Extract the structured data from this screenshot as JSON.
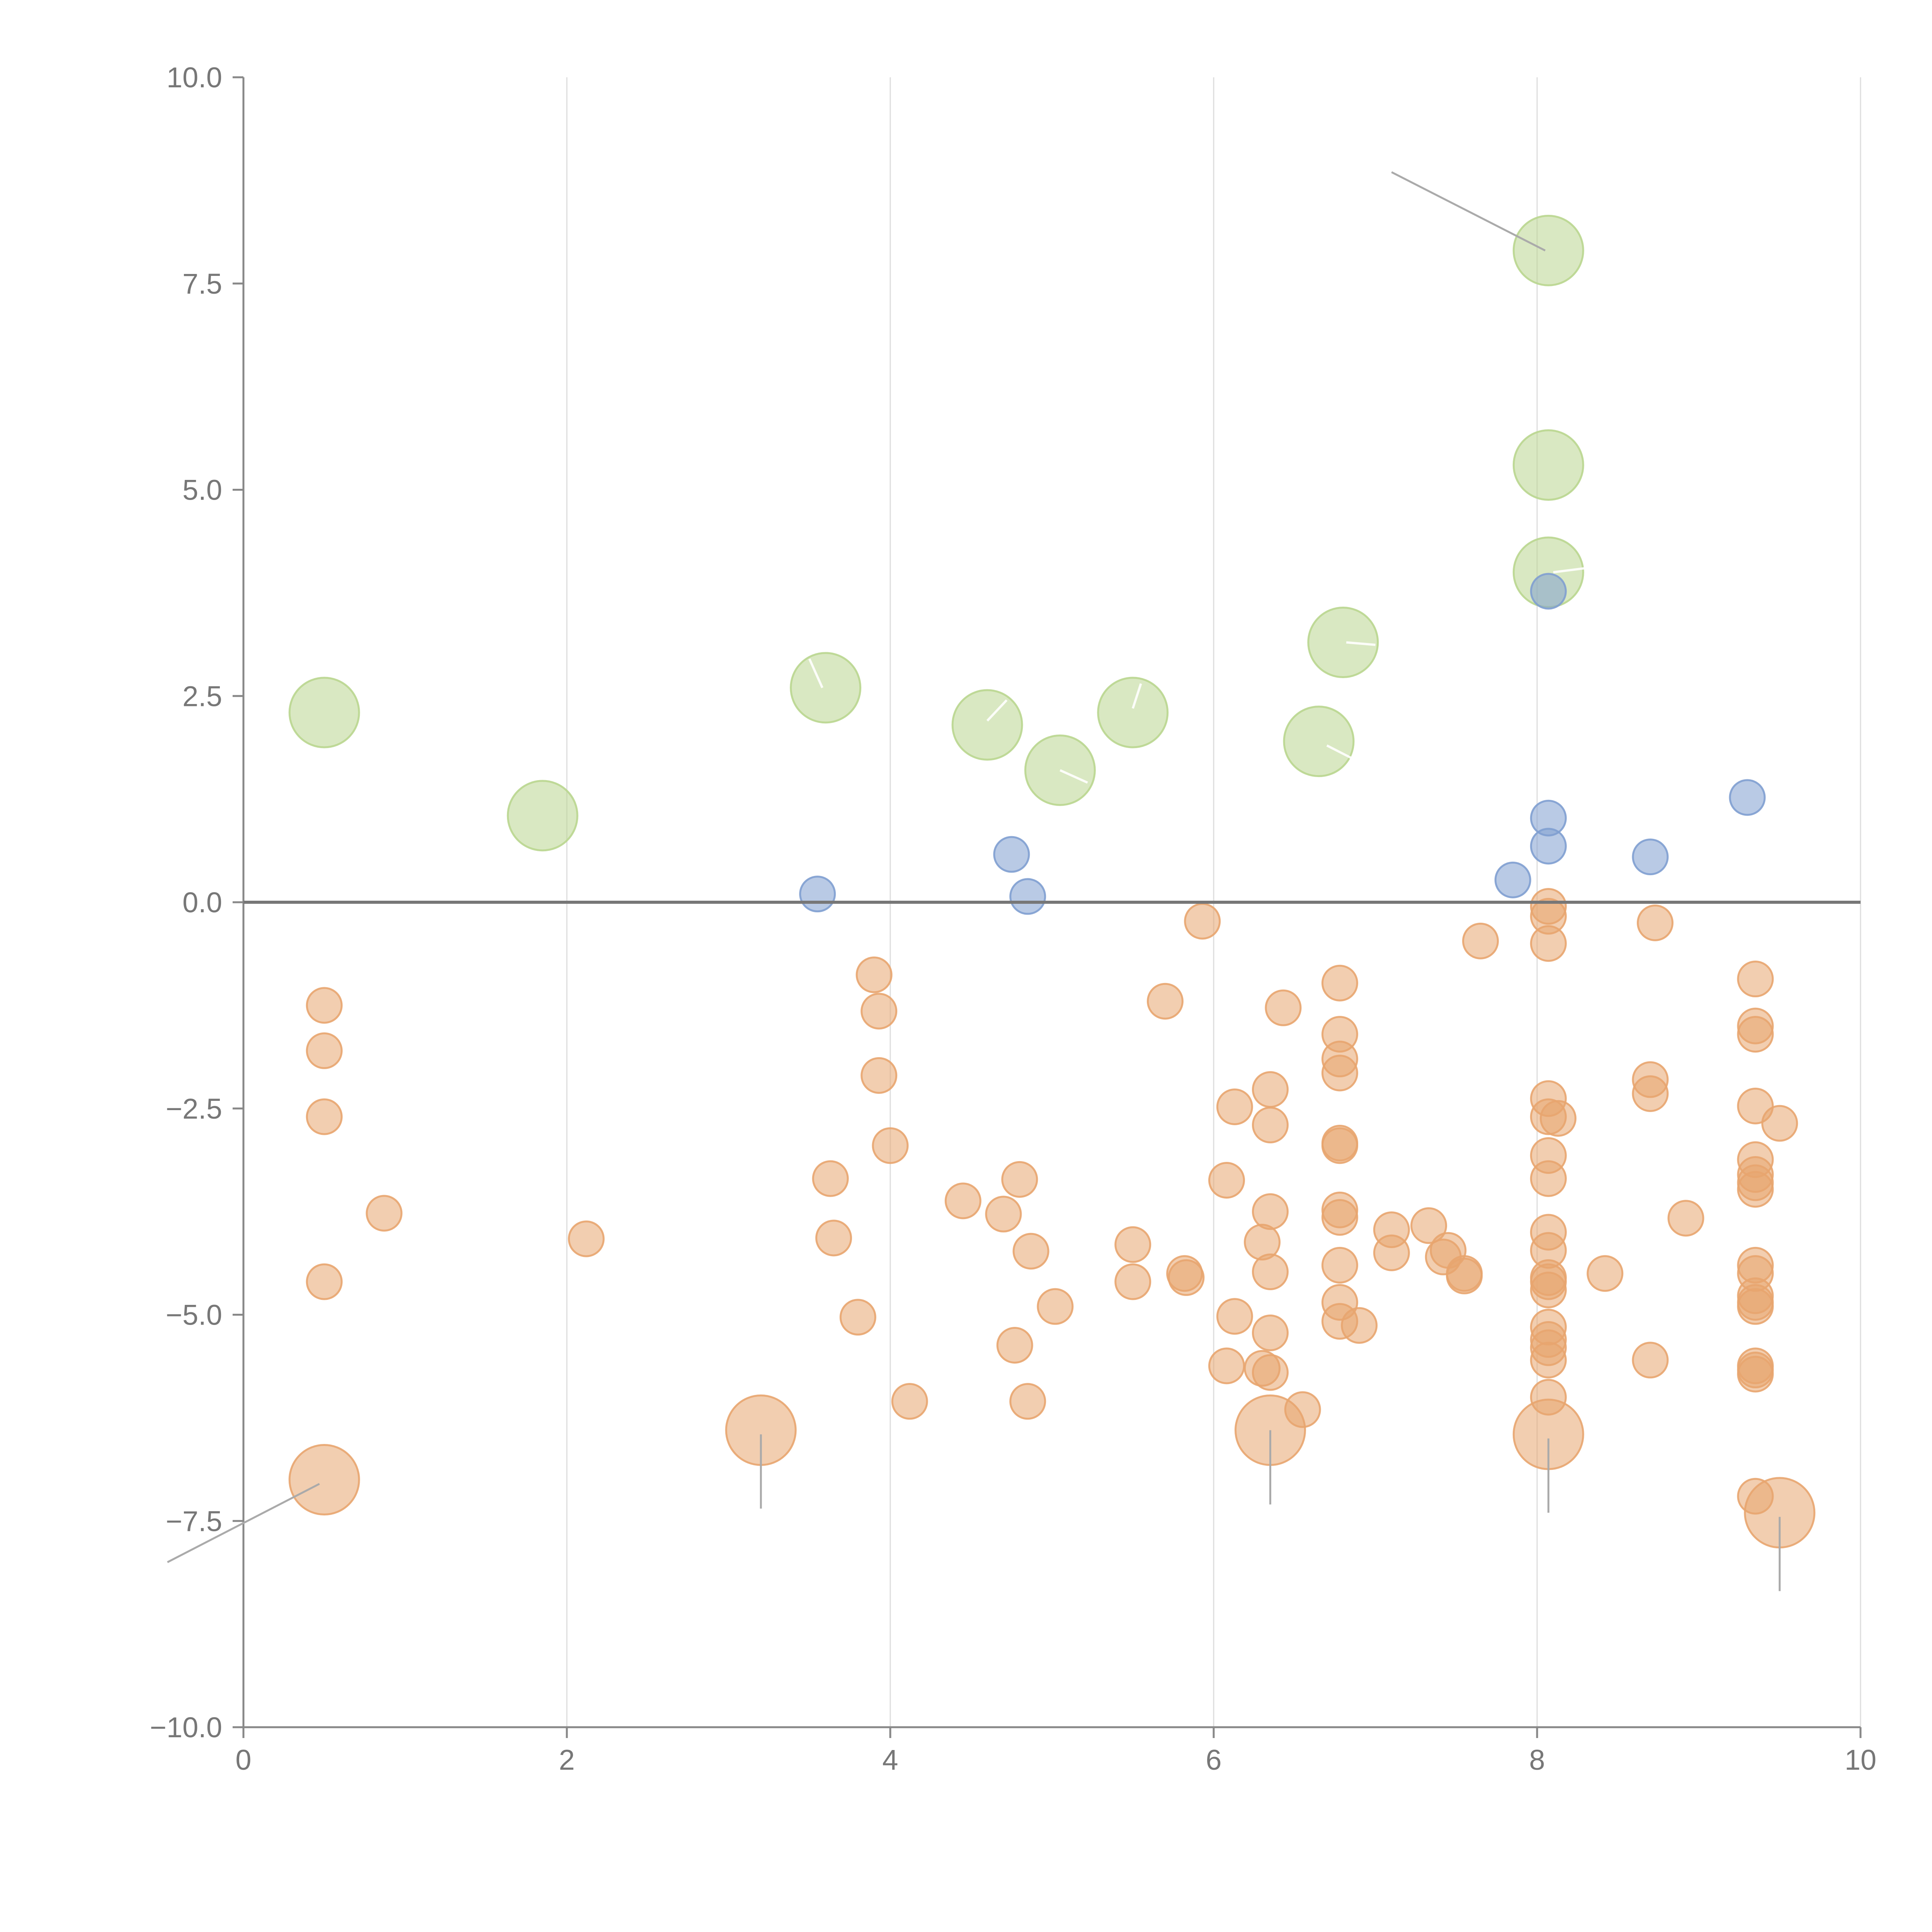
{
  "chart_data": {
    "type": "scatter",
    "title": "",
    "xlabel": "",
    "ylabel": "",
    "xlim": [
      0,
      10
    ],
    "ylim": [
      -10,
      10
    ],
    "grid": "vertical",
    "x_ticks": [
      0,
      2,
      4,
      6,
      8,
      10
    ],
    "x_tick_labels": [
      "0",
      "2",
      "4",
      "6",
      "8",
      "10"
    ],
    "y_ticks": [
      -10,
      -7.5,
      -5,
      -2.5,
      0,
      2.5,
      5,
      7.5,
      10
    ],
    "y_tick_labels": [
      "−10.0",
      "−7.5",
      "−5.0",
      "−2.5",
      "0.0",
      "2.5",
      "5.0",
      "7.5",
      "10.0"
    ],
    "zero_line": 0,
    "colors": {
      "axis": "#888888",
      "grid": "#dddddd",
      "zero": "#777777",
      "green": "#b9d68f",
      "blue": "#7f9fd0",
      "orange": "#e8a56f",
      "leader_dark": "#aaaaaa",
      "leader_light": "#ffffff"
    },
    "series": [
      {
        "name": "green",
        "color": "#b9d68f",
        "size": "large",
        "points": [
          [
            0.5,
            2.3
          ],
          [
            1.85,
            1.05
          ],
          [
            3.6,
            2.6
          ],
          [
            4.6,
            2.15
          ],
          [
            5.05,
            1.6
          ],
          [
            5.5,
            2.3
          ],
          [
            6.65,
            1.95
          ],
          [
            6.8,
            3.15
          ],
          [
            8.07,
            7.9
          ],
          [
            8.07,
            5.3
          ],
          [
            8.07,
            4.0
          ]
        ]
      },
      {
        "name": "blue",
        "color": "#7f9fd0",
        "size": "small",
        "points": [
          [
            3.55,
            0.1
          ],
          [
            4.75,
            0.58
          ],
          [
            4.85,
            0.07
          ],
          [
            7.85,
            0.27
          ],
          [
            8.07,
            1.02
          ],
          [
            8.07,
            0.68
          ],
          [
            8.07,
            3.77
          ],
          [
            8.7,
            0.55
          ],
          [
            9.3,
            1.27
          ]
        ]
      },
      {
        "name": "orange",
        "color": "#e8a56f",
        "size": "small",
        "points": [
          [
            0.5,
            -1.25
          ],
          [
            0.5,
            -1.8
          ],
          [
            0.5,
            -2.6
          ],
          [
            0.5,
            -4.6
          ],
          [
            0.87,
            -3.77
          ],
          [
            2.12,
            -4.08
          ],
          [
            3.63,
            -3.35
          ],
          [
            3.65,
            -4.07
          ],
          [
            3.8,
            -5.03
          ],
          [
            3.9,
            -0.88
          ],
          [
            3.93,
            -1.32
          ],
          [
            3.93,
            -2.1
          ],
          [
            4.0,
            -2.95
          ],
          [
            4.12,
            -6.05
          ],
          [
            4.45,
            -3.62
          ],
          [
            4.7,
            -3.78
          ],
          [
            4.77,
            -5.37
          ],
          [
            4.8,
            -3.36
          ],
          [
            4.85,
            -6.05
          ],
          [
            4.87,
            -4.23
          ],
          [
            5.02,
            -4.9
          ],
          [
            5.5,
            -4.15
          ],
          [
            5.5,
            -4.6
          ],
          [
            5.82,
            -4.5
          ],
          [
            5.83,
            -4.55
          ],
          [
            5.7,
            -1.2
          ],
          [
            5.93,
            -0.23
          ],
          [
            6.08,
            -3.37
          ],
          [
            6.08,
            -5.62
          ],
          [
            6.13,
            -2.48
          ],
          [
            6.13,
            -5.02
          ],
          [
            6.3,
            -4.12
          ],
          [
            6.3,
            -5.65
          ],
          [
            6.35,
            -2.27
          ],
          [
            6.35,
            -2.7
          ],
          [
            6.35,
            -3.75
          ],
          [
            6.35,
            -4.48
          ],
          [
            6.35,
            -5.22
          ],
          [
            6.35,
            -5.7
          ],
          [
            6.43,
            -1.28
          ],
          [
            6.55,
            -6.15
          ],
          [
            6.78,
            -0.98
          ],
          [
            6.78,
            -1.6
          ],
          [
            6.78,
            -1.9
          ],
          [
            6.78,
            -2.07
          ],
          [
            6.78,
            -2.92
          ],
          [
            6.78,
            -2.95
          ],
          [
            6.78,
            -3.73
          ],
          [
            6.78,
            -3.82
          ],
          [
            6.78,
            -4.4
          ],
          [
            6.78,
            -4.85
          ],
          [
            6.78,
            -5.08
          ],
          [
            6.9,
            -5.13
          ],
          [
            7.1,
            -3.97
          ],
          [
            7.1,
            -4.25
          ],
          [
            7.33,
            -3.92
          ],
          [
            7.45,
            -4.22
          ],
          [
            7.42,
            -4.3
          ],
          [
            7.55,
            -4.5
          ],
          [
            7.55,
            -4.53
          ],
          [
            7.65,
            -0.47
          ],
          [
            8.07,
            -0.05
          ],
          [
            8.07,
            -0.17
          ],
          [
            8.07,
            -0.5
          ],
          [
            8.07,
            -2.38
          ],
          [
            8.07,
            -2.6
          ],
          [
            8.07,
            -3.07
          ],
          [
            8.07,
            -3.35
          ],
          [
            8.07,
            -4.0
          ],
          [
            8.07,
            -4.22
          ],
          [
            8.07,
            -4.55
          ],
          [
            8.07,
            -4.6
          ],
          [
            8.07,
            -4.7
          ],
          [
            8.07,
            -5.15
          ],
          [
            8.07,
            -5.3
          ],
          [
            8.07,
            -5.4
          ],
          [
            8.07,
            -5.55
          ],
          [
            8.07,
            -6.0
          ],
          [
            8.13,
            -2.62
          ],
          [
            8.42,
            -4.5
          ],
          [
            8.7,
            -2.15
          ],
          [
            8.7,
            -2.32
          ],
          [
            8.7,
            -5.55
          ],
          [
            8.73,
            -0.25
          ],
          [
            8.92,
            -3.83
          ],
          [
            9.35,
            -0.93
          ],
          [
            9.35,
            -1.5
          ],
          [
            9.35,
            -1.6
          ],
          [
            9.35,
            -2.47
          ],
          [
            9.35,
            -3.12
          ],
          [
            9.35,
            -3.3
          ],
          [
            9.35,
            -3.4
          ],
          [
            9.35,
            -3.48
          ],
          [
            9.35,
            -4.4
          ],
          [
            9.35,
            -4.5
          ],
          [
            9.35,
            -4.77
          ],
          [
            9.35,
            -4.85
          ],
          [
            9.35,
            -4.9
          ],
          [
            9.35,
            -5.62
          ],
          [
            9.35,
            -5.67
          ],
          [
            9.35,
            -5.72
          ],
          [
            9.35,
            -7.2
          ],
          [
            9.5,
            -2.68
          ]
        ]
      },
      {
        "name": "orange-large",
        "color": "#e8a56f",
        "size": "large",
        "points": [
          [
            0.5,
            -7.0
          ],
          [
            3.2,
            -6.4
          ],
          [
            6.35,
            -6.4
          ],
          [
            8.07,
            -6.45
          ],
          [
            9.5,
            -7.4
          ]
        ]
      }
    ],
    "leaders": [
      {
        "from": [
          7.1,
          8.85
        ],
        "to": [
          8.05,
          7.9
        ],
        "color": "dark"
      },
      {
        "from": [
          0.47,
          -7.05
        ],
        "to": [
          -0.47,
          -8.0
        ],
        "color": "dark"
      },
      {
        "from": [
          3.2,
          -6.45
        ],
        "to": [
          3.2,
          -7.35
        ],
        "color": "dark"
      },
      {
        "from": [
          6.35,
          -6.4
        ],
        "to": [
          6.35,
          -7.3
        ],
        "color": "dark"
      },
      {
        "from": [
          8.07,
          -6.5
        ],
        "to": [
          8.07,
          -7.4
        ],
        "color": "dark"
      },
      {
        "from": [
          9.5,
          -7.45
        ],
        "to": [
          9.5,
          -8.35
        ],
        "color": "dark"
      },
      {
        "from": [
          3.58,
          2.6
        ],
        "to": [
          3.5,
          2.95
        ],
        "color": "light"
      },
      {
        "from": [
          4.6,
          2.2
        ],
        "to": [
          4.72,
          2.45
        ],
        "color": "light"
      },
      {
        "from": [
          5.05,
          1.6
        ],
        "to": [
          5.22,
          1.45
        ],
        "color": "light"
      },
      {
        "from": [
          5.5,
          2.35
        ],
        "to": [
          5.55,
          2.65
        ],
        "color": "light"
      },
      {
        "from": [
          6.7,
          1.9
        ],
        "to": [
          6.85,
          1.75
        ],
        "color": "light"
      },
      {
        "from": [
          6.82,
          3.15
        ],
        "to": [
          7.0,
          3.12
        ],
        "color": "light"
      },
      {
        "from": [
          8.1,
          4.0
        ],
        "to": [
          8.3,
          4.05
        ],
        "color": "light"
      }
    ]
  }
}
